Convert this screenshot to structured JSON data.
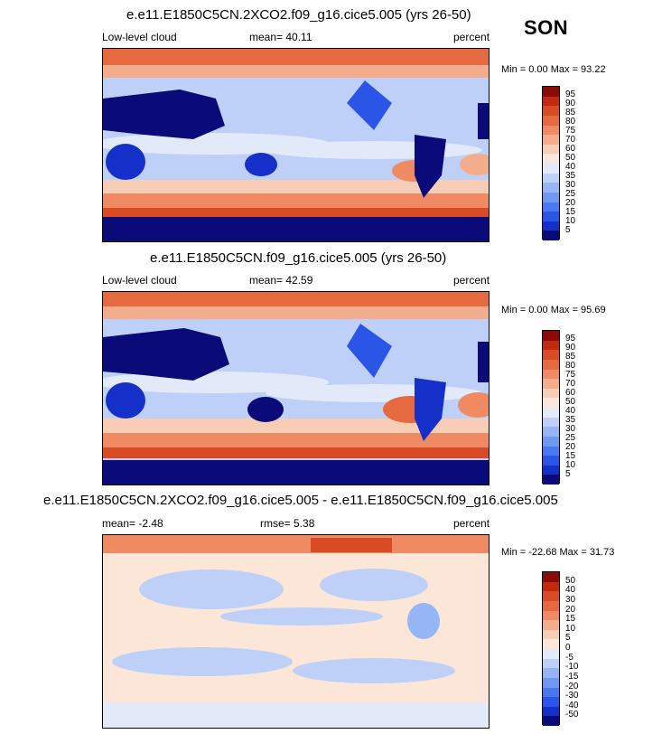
{
  "season": "SON",
  "colors": {
    "cmap_abs": [
      "#0a0a78",
      "#1530c8",
      "#2a55e6",
      "#4a78f0",
      "#6f98f2",
      "#96b5f5",
      "#bed0f8",
      "#e2eaf9",
      "#f9e6dc",
      "#f7cdb6",
      "#f4ad8c",
      "#ef8a62",
      "#e56a3f",
      "#d94b25",
      "#c22a0f",
      "#8c0a05"
    ],
    "cmap_diff": [
      "#0a0a78",
      "#1530c8",
      "#2a55e6",
      "#4a78f0",
      "#6f98f2",
      "#96b5f5",
      "#bed0f8",
      "#e2eaf9",
      "#fbe6d8",
      "#f7cdb6",
      "#f4ad8c",
      "#ef8a62",
      "#e56a3f",
      "#d94b25",
      "#c22a0f",
      "#8c0a05"
    ]
  },
  "panels": [
    {
      "title": "e.e11.E1850C5CN.2XCO2.f09_g16.cice5.005 (yrs 26-50)",
      "left_label": "Low-level cloud",
      "center_label": "mean=  40.11",
      "right_label": "percent",
      "minmax": "Min =   0.00 Max =  93.22",
      "colorbar_labels": [
        "95",
        "90",
        "85",
        "80",
        "75",
        "70",
        "60",
        "50",
        "40",
        "35",
        "30",
        "25",
        "20",
        "15",
        "10",
        "5"
      ]
    },
    {
      "title": "e.e11.E1850C5CN.f09_g16.cice5.005 (yrs 26-50)",
      "left_label": "Low-level cloud",
      "center_label": "mean=  42.59",
      "right_label": "percent",
      "minmax": "Min =   0.00 Max =  95.69",
      "colorbar_labels": [
        "95",
        "90",
        "85",
        "80",
        "75",
        "70",
        "60",
        "50",
        "40",
        "35",
        "30",
        "25",
        "20",
        "15",
        "10",
        "5"
      ]
    },
    {
      "title": "e.e11.E1850C5CN.2XCO2.f09_g16.cice5.005 - e.e11.E1850C5CN.f09_g16.cice5.005",
      "left_label": "mean=  -2.48",
      "center_label": "rmse=   5.38",
      "right_label": "percent",
      "minmax": "Min = -22.68 Max =  31.73",
      "colorbar_labels": [
        "50",
        "40",
        "30",
        "20",
        "15",
        "10",
        "5",
        "0",
        "-5",
        "-10",
        "-15",
        "-20",
        "-30",
        "-40",
        "-50"
      ]
    }
  ]
}
